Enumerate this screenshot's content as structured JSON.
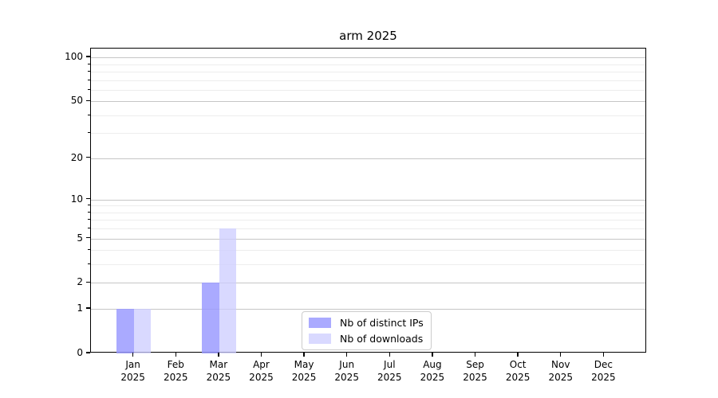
{
  "title": "arm 2025",
  "legend": {
    "items": [
      {
        "label": "Nb of distinct IPs",
        "color": "rgba(153,153,255,0.83)"
      },
      {
        "label": "Nb of downloads",
        "color": "rgba(204,204,255,0.75)"
      }
    ]
  },
  "chart_data": {
    "type": "bar",
    "title": "arm 2025",
    "categories": [
      "Jan",
      "Feb",
      "Mar",
      "Apr",
      "May",
      "Jun",
      "Jul",
      "Aug",
      "Sep",
      "Oct",
      "Nov",
      "Dec"
    ],
    "x_tick_labels": [
      {
        "month": "Jan",
        "year": "2025"
      },
      {
        "month": "Feb",
        "year": "2025"
      },
      {
        "month": "Mar",
        "year": "2025"
      },
      {
        "month": "Apr",
        "year": "2025"
      },
      {
        "month": "May",
        "year": "2025"
      },
      {
        "month": "Jun",
        "year": "2025"
      },
      {
        "month": "Jul",
        "year": "2025"
      },
      {
        "month": "Aug",
        "year": "2025"
      },
      {
        "month": "Sep",
        "year": "2025"
      },
      {
        "month": "Oct",
        "year": "2025"
      },
      {
        "month": "Nov",
        "year": "2025"
      },
      {
        "month": "Dec",
        "year": "2025"
      }
    ],
    "series": [
      {
        "name": "Nb of distinct IPs",
        "color": "rgba(153,153,255,0.83)",
        "values": [
          1,
          0,
          2,
          0,
          0,
          0,
          0,
          0,
          0,
          0,
          0,
          0
        ]
      },
      {
        "name": "Nb of downloads",
        "color": "rgba(204,204,255,0.75)",
        "values": [
          1,
          0,
          6,
          0,
          0,
          0,
          0,
          0,
          0,
          0,
          0,
          0
        ]
      }
    ],
    "xlabel": "",
    "ylabel": "",
    "y_scale": "log10(value+1)",
    "y_ticks": [
      0,
      1,
      2,
      5,
      10,
      20,
      50,
      100
    ],
    "y_tick_labels": [
      "0",
      "1",
      "2",
      "5",
      "10",
      "20",
      "50",
      "100"
    ],
    "y_minor_gridlines": [
      3,
      4,
      6,
      7,
      8,
      9,
      30,
      40,
      60,
      70,
      80,
      90
    ],
    "ylim": [
      0,
      115
    ],
    "grid": "horizontal",
    "legend_position": "inside-bottom-center",
    "colors": {
      "major_grid": "#c6c6c6",
      "minor_grid": "#ededed",
      "axis": "#000000",
      "background": "#ffffff"
    }
  }
}
